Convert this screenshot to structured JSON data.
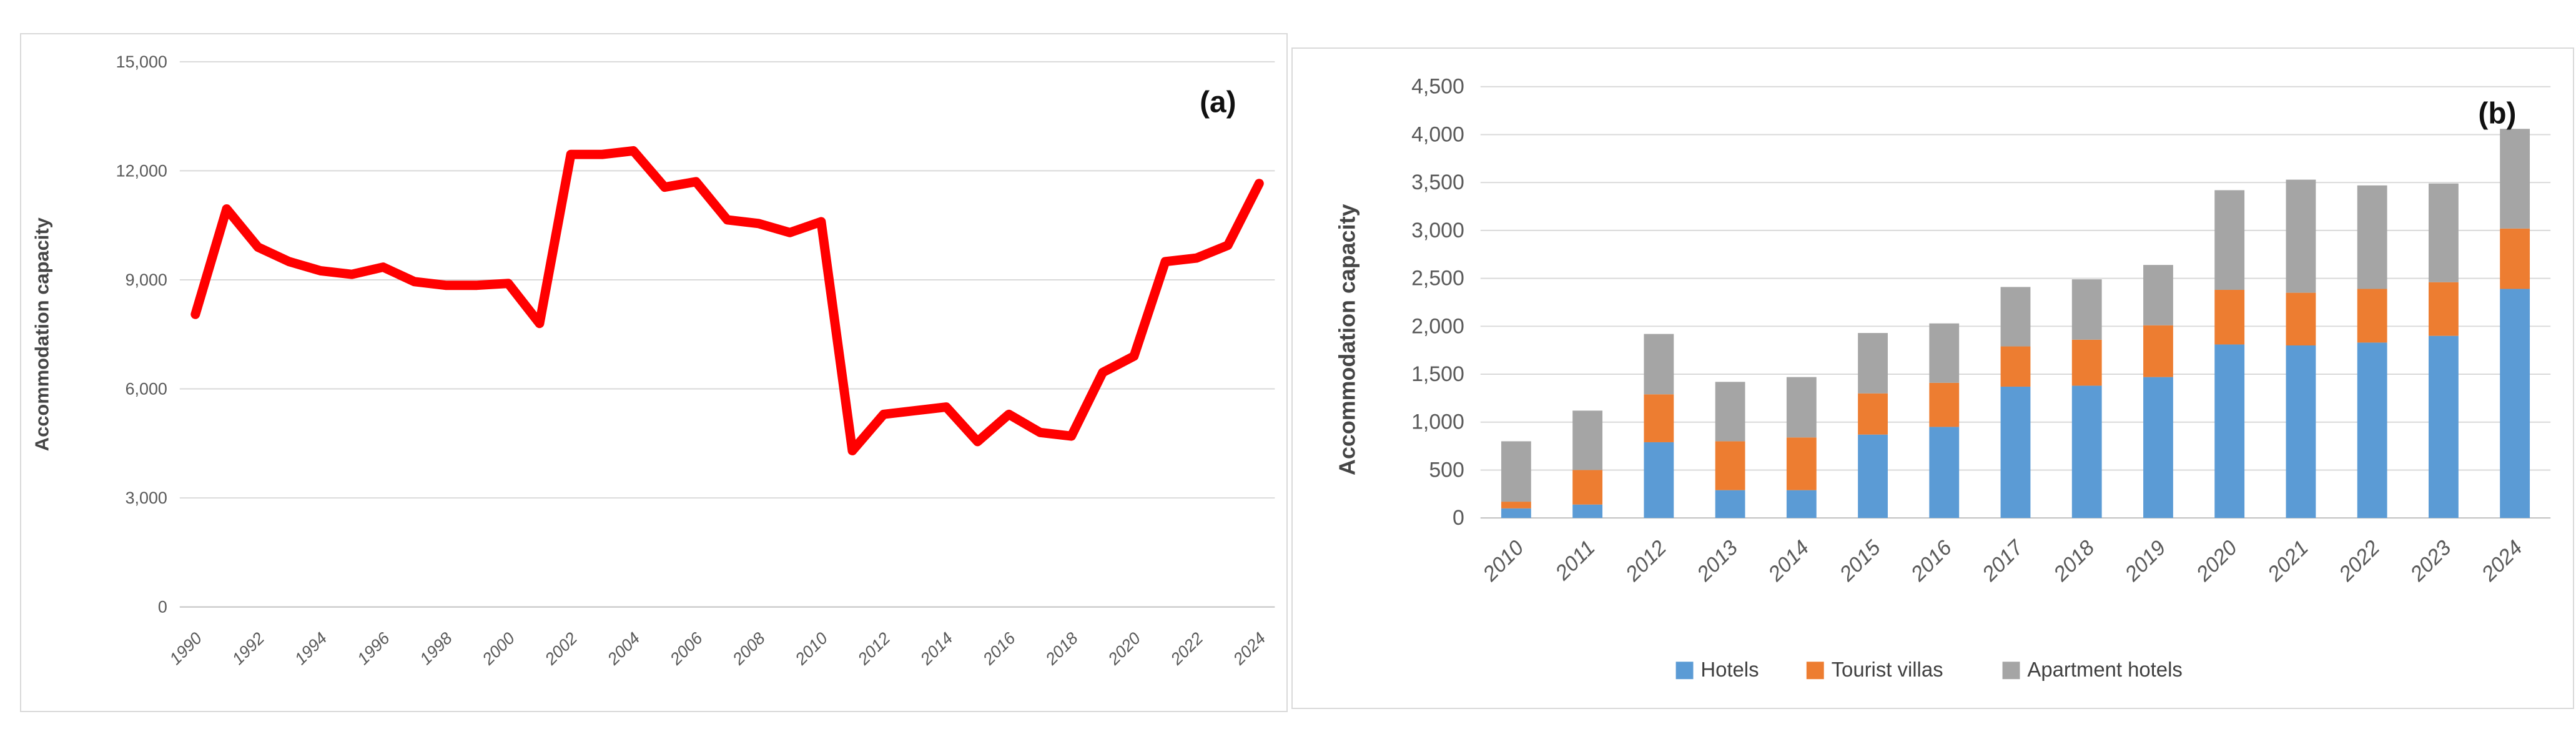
{
  "page": {
    "background": "#ffffff"
  },
  "colors": {
    "red_line": "#ff0000",
    "hotels_blue": "#5b9bd5",
    "villas_orange": "#ed7d31",
    "apartments_gray": "#a5a5a5",
    "gridline": "#d9d9d9",
    "axis_line": "#c0c0c0",
    "tick_text": "#595959",
    "panel_border": "#d9d9d9"
  },
  "chart_data": [
    {
      "id": "a",
      "type": "line",
      "panel_label": "(a)",
      "ylabel": "Accommodation capacity",
      "ylim": [
        0,
        15000
      ],
      "ytick_step": 3000,
      "ytick_values": [
        0,
        3000,
        6000,
        9000,
        12000,
        15000
      ],
      "ytick_labels": [
        "0",
        "3,000",
        "6,000",
        "9,000",
        "12,000",
        "15,000"
      ],
      "grid": true,
      "legend_position": "none",
      "x": [
        1990,
        1991,
        1992,
        1993,
        1994,
        1995,
        1996,
        1997,
        1998,
        1999,
        2000,
        2001,
        2002,
        2003,
        2004,
        2005,
        2006,
        2007,
        2008,
        2009,
        2010,
        2011,
        2012,
        2013,
        2014,
        2015,
        2016,
        2017,
        2018,
        2019,
        2020,
        2021,
        2022,
        2023,
        2024
      ],
      "xtick_labels": [
        "1990",
        "1992",
        "1994",
        "1996",
        "1998",
        "2000",
        "2002",
        "2004",
        "2006",
        "2008",
        "2010",
        "2012",
        "2014",
        "2016",
        "2018",
        "2020",
        "2022",
        "2024"
      ],
      "series": [
        {
          "name": "Accommodation capacity",
          "color_key": "red_line",
          "values": [
            8050,
            10950,
            9900,
            9500,
            9250,
            9150,
            9350,
            8950,
            8850,
            8850,
            8900,
            7800,
            12450,
            12450,
            12550,
            11550,
            11700,
            10650,
            10550,
            10300,
            10600,
            4300,
            5300,
            5400,
            5500,
            4550,
            5300,
            4800,
            4700,
            6450,
            6900,
            9500,
            9600,
            9950,
            11650
          ]
        }
      ]
    },
    {
      "id": "b",
      "type": "stacked-bar",
      "panel_label": "(b)",
      "ylabel": "Accommodation capacity",
      "ylim": [
        0,
        4500
      ],
      "ytick_step": 500,
      "ytick_values": [
        0,
        500,
        1000,
        1500,
        2000,
        2500,
        3000,
        3500,
        4000,
        4500
      ],
      "ytick_labels": [
        "0",
        "500",
        "1,000",
        "1,500",
        "2,000",
        "2,500",
        "3,000",
        "3,500",
        "4,000",
        "4,500"
      ],
      "grid": true,
      "legend_position": "bottom",
      "categories": [
        "2010",
        "2011",
        "2012",
        "2013",
        "2014",
        "2015",
        "2016",
        "2017",
        "2018",
        "2019",
        "2020",
        "2021",
        "2022",
        "2023",
        "2024"
      ],
      "series": [
        {
          "name": "Hotels",
          "color_key": "hotels_blue",
          "values": [
            100,
            140,
            790,
            290,
            290,
            870,
            950,
            1370,
            1380,
            1470,
            1810,
            1800,
            1830,
            1900,
            2390
          ]
        },
        {
          "name": "Tourist villas",
          "color_key": "villas_orange",
          "values": [
            70,
            360,
            500,
            510,
            550,
            430,
            460,
            420,
            480,
            540,
            570,
            550,
            560,
            560,
            630
          ]
        },
        {
          "name": "Apartment hotels",
          "color_key": "apartments_gray",
          "values": [
            630,
            620,
            630,
            620,
            630,
            630,
            620,
            620,
            630,
            630,
            1040,
            1180,
            1080,
            1030,
            1040
          ]
        }
      ]
    }
  ]
}
